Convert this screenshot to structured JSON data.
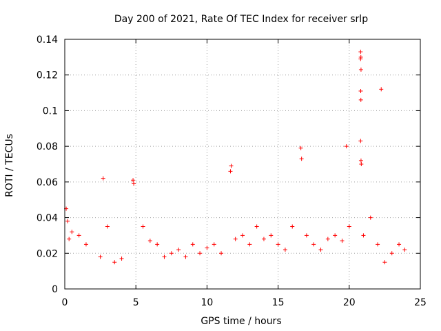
{
  "chart_data": {
    "type": "scatter",
    "title": "Day 200 of 2021, Rate Of TEC Index for receiver srlp",
    "xlabel": "GPS time / hours",
    "ylabel": "ROTI / TECUs",
    "xlim": [
      0,
      25
    ],
    "ylim": [
      0,
      0.14
    ],
    "xticks": [
      "0",
      "5",
      "10",
      "15",
      "20",
      "25"
    ],
    "yticks": [
      "0",
      "0.02",
      "0.04",
      "0.06",
      "0.08",
      "0.1",
      "0.12",
      "0.14"
    ],
    "grid": true,
    "marker": "+",
    "color": "#ff0000",
    "series": [
      {
        "name": "ROTI",
        "x": [
          20.8,
          20.82,
          20.8,
          20.83,
          20.81,
          20.82,
          20.8,
          20.83,
          22.25,
          20.85,
          16.6,
          16.65,
          19.8,
          11.7,
          11.65,
          4.8,
          4.85,
          2.7,
          0.1,
          0.2,
          0.3,
          0.5,
          1.0,
          1.5,
          2.5,
          3.0,
          3.5,
          4.0,
          5.5,
          6.0,
          6.5,
          7.0,
          7.5,
          8.0,
          8.5,
          9.0,
          9.5,
          10.0,
          10.5,
          11.0,
          12.0,
          12.5,
          13.0,
          13.5,
          14.0,
          14.5,
          15.0,
          15.5,
          16.0,
          17.0,
          17.5,
          18.0,
          18.5,
          19.0,
          19.5,
          20.0,
          21.0,
          21.5,
          22.0,
          22.5,
          23.0,
          23.5,
          23.9
        ],
        "y": [
          0.133,
          0.13,
          0.129,
          0.123,
          0.111,
          0.106,
          0.083,
          0.072,
          0.112,
          0.07,
          0.079,
          0.073,
          0.08,
          0.069,
          0.066,
          0.061,
          0.059,
          0.062,
          0.045,
          0.038,
          0.028,
          0.032,
          0.03,
          0.025,
          0.018,
          0.035,
          0.015,
          0.017,
          0.035,
          0.027,
          0.025,
          0.018,
          0.02,
          0.022,
          0.018,
          0.025,
          0.02,
          0.023,
          0.025,
          0.02,
          0.028,
          0.03,
          0.025,
          0.035,
          0.028,
          0.03,
          0.025,
          0.022,
          0.035,
          0.03,
          0.025,
          0.022,
          0.028,
          0.03,
          0.027,
          0.035,
          0.03,
          0.04,
          0.025,
          0.015,
          0.02,
          0.025,
          0.022
        ]
      }
    ]
  }
}
